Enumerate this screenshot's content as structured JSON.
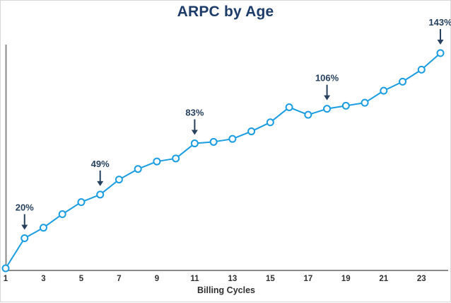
{
  "page": {
    "title": "ARPC by Age"
  },
  "chart_data": {
    "type": "line",
    "title": "ARPC by Age",
    "xlabel": "Billing Cycles",
    "ylabel": "",
    "unit": "%",
    "x": [
      1,
      2,
      3,
      4,
      5,
      6,
      7,
      8,
      9,
      10,
      11,
      12,
      13,
      14,
      15,
      16,
      17,
      18,
      19,
      20,
      21,
      22,
      23,
      24
    ],
    "values": [
      0,
      20,
      27,
      36,
      44,
      49,
      59,
      66,
      71,
      73,
      83,
      84,
      86,
      91,
      97,
      107,
      102,
      106,
      108,
      110,
      118,
      124,
      132,
      143
    ],
    "x_ticks": [
      1,
      3,
      5,
      7,
      9,
      11,
      13,
      15,
      17,
      19,
      21,
      23
    ],
    "x_tick_labels": [
      "1",
      "3",
      "5",
      "7",
      "9",
      "11",
      "13",
      "15",
      "17",
      "19",
      "21",
      "23"
    ],
    "annotations": [
      {
        "x": 2,
        "label": "20%"
      },
      {
        "x": 6,
        "label": "49%"
      },
      {
        "x": 11,
        "label": "83%"
      },
      {
        "x": 18,
        "label": "106%"
      },
      {
        "x": 24,
        "label": "143%"
      }
    ],
    "ylim": [
      0,
      150
    ],
    "grid": false,
    "legend": null,
    "colors": {
      "line": "#1b9de2",
      "marker_fill": "#ffffff",
      "marker_stroke": "#1b9de2",
      "annotation": "#26405e",
      "title": "#1e3c6a",
      "axis": "#8a8a8a",
      "tick_label": "#2f2f2f"
    }
  }
}
